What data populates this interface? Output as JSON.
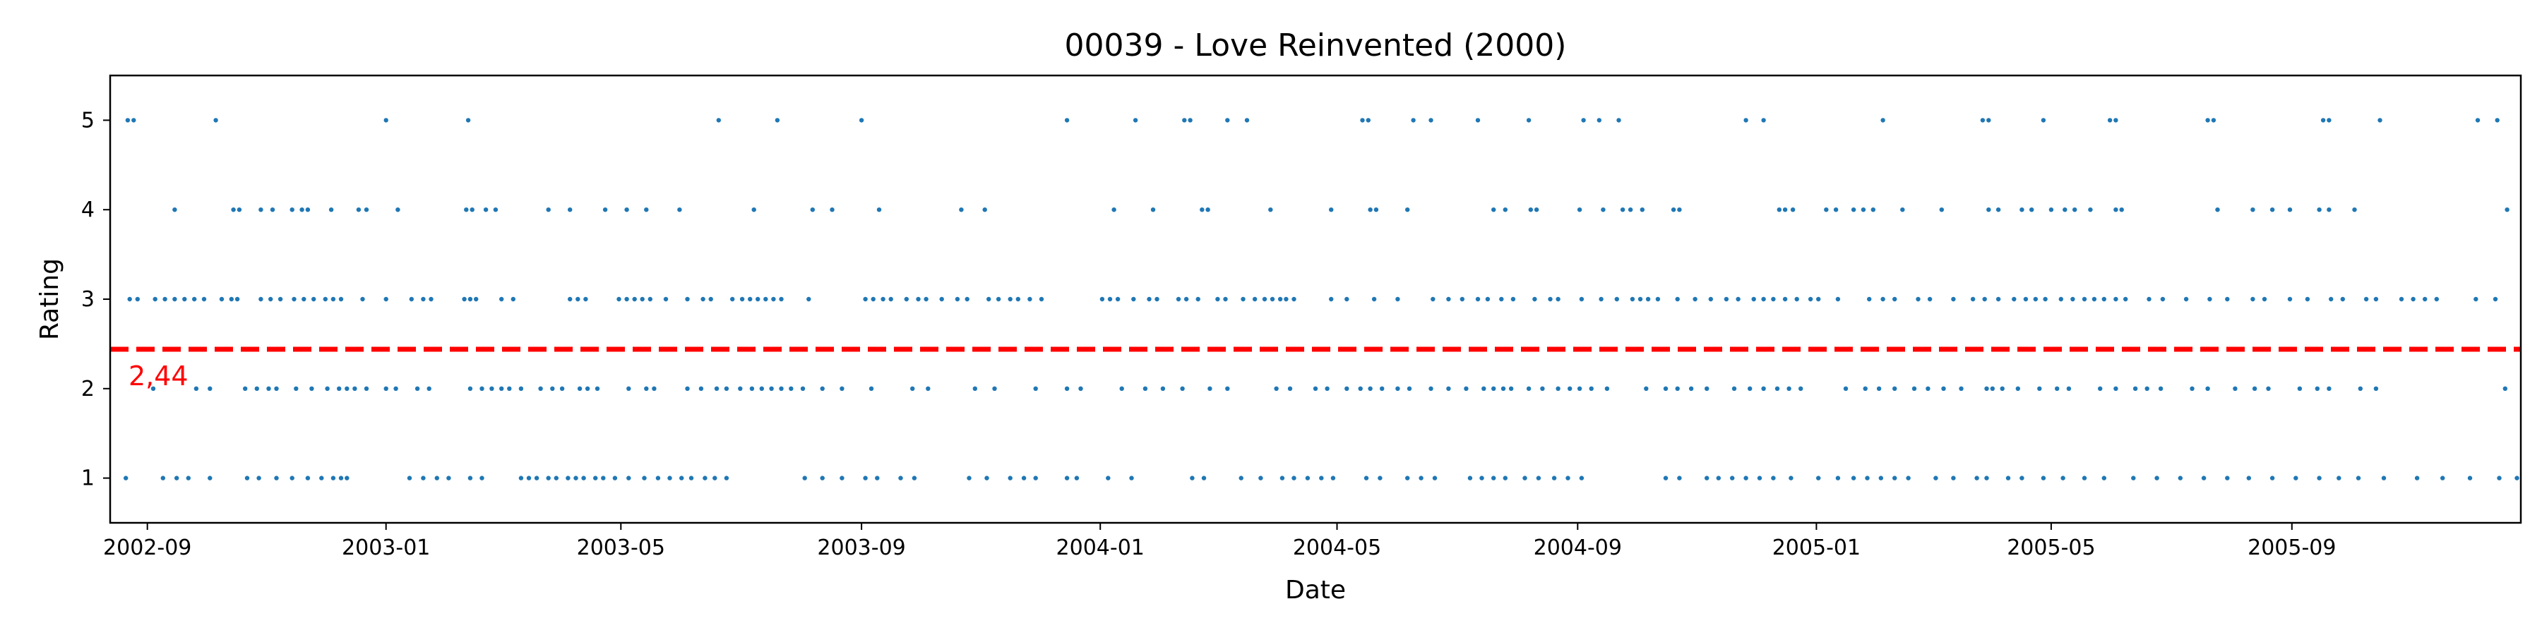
{
  "chart_data": {
    "type": "scatter",
    "title": "00039 - Love Reinvented (2000)",
    "xlabel": "Date",
    "ylabel": "Rating",
    "xlim": [
      "2002-08-13",
      "2005-12-27"
    ],
    "ylim": [
      0.5,
      5.5
    ],
    "x_ticks": [
      "2002-09",
      "2003-01",
      "2003-05",
      "2003-09",
      "2004-01",
      "2004-05",
      "2004-09",
      "2005-01",
      "2005-05",
      "2005-09"
    ],
    "y_ticks": [
      "1",
      "2",
      "3",
      "4",
      "5"
    ],
    "grid": false,
    "series": [
      {
        "color": "#1f77b4",
        "points_by_rating": {
          "5": [
            "2002-08-22",
            "2002-08-25",
            "2002-10-06",
            "2003-01-01",
            "2003-02-12",
            "2003-06-20",
            "2003-07-20",
            "2003-09-01",
            "2003-12-15",
            "2004-01-19",
            "2004-02-13",
            "2004-02-16",
            "2004-03-06",
            "2004-03-16",
            "2004-05-14",
            "2004-05-17",
            "2004-06-09",
            "2004-06-18",
            "2004-07-12",
            "2004-08-07",
            "2004-09-04",
            "2004-09-12",
            "2004-09-22",
            "2004-11-26",
            "2004-12-05",
            "2005-02-04",
            "2005-03-27",
            "2005-03-30",
            "2005-04-27",
            "2005-05-31",
            "2005-06-03",
            "2005-07-20",
            "2005-07-23",
            "2005-09-17",
            "2005-09-20",
            "2005-10-16",
            "2005-12-05",
            "2005-12-15"
          ],
          "4": [
            "2002-09-15",
            "2002-10-15",
            "2002-10-18",
            "2002-10-29",
            "2002-11-04",
            "2002-11-14",
            "2002-11-19",
            "2002-11-22",
            "2002-12-04",
            "2002-12-18",
            "2002-12-22",
            "2003-01-07",
            "2003-02-11",
            "2003-02-14",
            "2003-02-21",
            "2003-02-26",
            "2003-03-25",
            "2003-04-05",
            "2003-04-23",
            "2003-05-04",
            "2003-05-14",
            "2003-05-31",
            "2003-07-08",
            "2003-08-07",
            "2003-08-17",
            "2003-09-10",
            "2003-10-22",
            "2003-11-03",
            "2004-01-08",
            "2004-01-28",
            "2004-02-22",
            "2004-02-25",
            "2004-03-28",
            "2004-04-28",
            "2004-05-18",
            "2004-05-21",
            "2004-06-06",
            "2004-07-20",
            "2004-07-26",
            "2004-08-08",
            "2004-08-11",
            "2004-09-02",
            "2004-09-14",
            "2004-09-24",
            "2004-09-28",
            "2004-10-04",
            "2004-10-20",
            "2004-10-23",
            "2004-12-13",
            "2004-12-16",
            "2004-12-20",
            "2005-01-06",
            "2005-01-11",
            "2005-01-20",
            "2005-01-25",
            "2005-01-30",
            "2005-02-14",
            "2005-03-06",
            "2005-03-30",
            "2005-04-04",
            "2005-04-16",
            "2005-04-21",
            "2005-05-01",
            "2005-05-08",
            "2005-05-13",
            "2005-05-21",
            "2005-06-03",
            "2005-06-06",
            "2005-07-25",
            "2005-08-12",
            "2005-08-22",
            "2005-08-31",
            "2005-09-15",
            "2005-09-20",
            "2005-10-03",
            "2005-12-20"
          ],
          "3": [
            "2002-08-23",
            "2002-08-27",
            "2002-09-05",
            "2002-09-10",
            "2002-09-15",
            "2002-09-20",
            "2002-09-25",
            "2002-09-30",
            "2002-10-09",
            "2002-10-14",
            "2002-10-17",
            "2002-10-29",
            "2002-11-03",
            "2002-11-08",
            "2002-11-15",
            "2002-11-20",
            "2002-11-25",
            "2002-12-01",
            "2002-12-05",
            "2002-12-09",
            "2002-12-20",
            "2003-01-01",
            "2003-01-14",
            "2003-01-20",
            "2003-01-24",
            "2003-02-10",
            "2003-02-13",
            "2003-02-16",
            "2003-03-01",
            "2003-03-07",
            "2003-04-05",
            "2003-04-09",
            "2003-04-13",
            "2003-04-30",
            "2003-05-04",
            "2003-05-08",
            "2003-05-12",
            "2003-05-16",
            "2003-05-24",
            "2003-06-04",
            "2003-06-12",
            "2003-06-16",
            "2003-06-27",
            "2003-07-02",
            "2003-07-06",
            "2003-07-10",
            "2003-07-14",
            "2003-07-18",
            "2003-07-22",
            "2003-08-05",
            "2003-09-03",
            "2003-09-07",
            "2003-09-12",
            "2003-09-16",
            "2003-09-24",
            "2003-09-30",
            "2003-10-04",
            "2003-10-12",
            "2003-10-20",
            "2003-10-25",
            "2003-11-05",
            "2003-11-10",
            "2003-11-16",
            "2003-11-20",
            "2003-11-26",
            "2003-12-02",
            "2004-01-02",
            "2004-01-06",
            "2004-01-10",
            "2004-01-18",
            "2004-01-26",
            "2004-01-30",
            "2004-02-10",
            "2004-02-14",
            "2004-02-20",
            "2004-03-01",
            "2004-03-05",
            "2004-03-14",
            "2004-03-20",
            "2004-03-25",
            "2004-03-29",
            "2004-04-02",
            "2004-04-05",
            "2004-04-09",
            "2004-04-28",
            "2004-05-06",
            "2004-05-20",
            "2004-06-01",
            "2004-06-19",
            "2004-06-27",
            "2004-07-04",
            "2004-07-12",
            "2004-07-17",
            "2004-07-24",
            "2004-07-30",
            "2004-08-10",
            "2004-08-18",
            "2004-08-22",
            "2004-09-03",
            "2004-09-13",
            "2004-09-21",
            "2004-09-29",
            "2004-10-03",
            "2004-10-07",
            "2004-10-12",
            "2004-10-22",
            "2004-10-31",
            "2004-11-08",
            "2004-11-16",
            "2004-11-22",
            "2004-11-30",
            "2004-12-05",
            "2004-12-10",
            "2004-12-16",
            "2004-12-22",
            "2004-12-29",
            "2005-01-02",
            "2005-01-12",
            "2005-01-28",
            "2005-02-04",
            "2005-02-10",
            "2005-02-22",
            "2005-02-28",
            "2005-03-12",
            "2005-03-22",
            "2005-03-28",
            "2005-04-04",
            "2005-04-12",
            "2005-04-18",
            "2005-04-23",
            "2005-04-28",
            "2005-05-06",
            "2005-05-12",
            "2005-05-18",
            "2005-05-23",
            "2005-05-28",
            "2005-06-03",
            "2005-06-08",
            "2005-06-20",
            "2005-06-27",
            "2005-07-09",
            "2005-07-21",
            "2005-07-30",
            "2005-08-12",
            "2005-08-18",
            "2005-08-31",
            "2005-09-09",
            "2005-09-21",
            "2005-09-27",
            "2005-10-09",
            "2005-10-14",
            "2005-10-27",
            "2005-11-02",
            "2005-11-08",
            "2005-11-14",
            "2005-12-04",
            "2005-12-14"
          ],
          "2": [
            "2002-09-04",
            "2002-09-26",
            "2002-10-03",
            "2002-10-21",
            "2002-10-27",
            "2002-11-02",
            "2002-11-06",
            "2002-11-16",
            "2002-11-24",
            "2002-12-02",
            "2002-12-08",
            "2002-12-12",
            "2002-12-16",
            "2002-12-22",
            "2003-01-01",
            "2003-01-06",
            "2003-01-17",
            "2003-01-23",
            "2003-02-13",
            "2003-02-19",
            "2003-02-24",
            "2003-03-01",
            "2003-03-05",
            "2003-03-11",
            "2003-03-21",
            "2003-03-27",
            "2003-04-01",
            "2003-04-10",
            "2003-04-14",
            "2003-04-19",
            "2003-05-05",
            "2003-05-14",
            "2003-05-18",
            "2003-06-04",
            "2003-06-11",
            "2003-06-19",
            "2003-06-24",
            "2003-07-01",
            "2003-07-07",
            "2003-07-12",
            "2003-07-17",
            "2003-07-22",
            "2003-07-27",
            "2003-08-02",
            "2003-08-12",
            "2003-08-22",
            "2003-09-06",
            "2003-09-27",
            "2003-10-05",
            "2003-10-29",
            "2003-11-08",
            "2003-11-29",
            "2003-12-15",
            "2003-12-22",
            "2004-01-12",
            "2004-01-24",
            "2004-02-02",
            "2004-02-12",
            "2004-02-26",
            "2004-03-06",
            "2004-03-31",
            "2004-04-07",
            "2004-04-20",
            "2004-04-26",
            "2004-05-06",
            "2004-05-13",
            "2004-05-18",
            "2004-05-24",
            "2004-06-01",
            "2004-06-07",
            "2004-06-18",
            "2004-06-27",
            "2004-07-06",
            "2004-07-15",
            "2004-07-20",
            "2004-07-25",
            "2004-07-29",
            "2004-08-07",
            "2004-08-14",
            "2004-08-22",
            "2004-08-28",
            "2004-09-02",
            "2004-09-08",
            "2004-09-16",
            "2004-10-06",
            "2004-10-16",
            "2004-10-22",
            "2004-10-29",
            "2004-11-06",
            "2004-11-20",
            "2004-11-28",
            "2004-12-05",
            "2004-12-12",
            "2004-12-18",
            "2004-12-24",
            "2005-01-16",
            "2005-01-26",
            "2005-02-02",
            "2005-02-10",
            "2005-02-20",
            "2005-02-27",
            "2005-03-07",
            "2005-03-16",
            "2005-03-29",
            "2005-04-01",
            "2005-04-06",
            "2005-04-14",
            "2005-04-25",
            "2005-05-04",
            "2005-05-10",
            "2005-05-26",
            "2005-06-03",
            "2005-06-13",
            "2005-06-19",
            "2005-06-26",
            "2005-07-12",
            "2005-07-20",
            "2005-08-03",
            "2005-08-13",
            "2005-08-20",
            "2005-09-05",
            "2005-09-14",
            "2005-09-20",
            "2005-10-06",
            "2005-10-14",
            "2005-12-19"
          ],
          "1": [
            "2002-08-21",
            "2002-09-09",
            "2002-09-16",
            "2002-09-22",
            "2002-10-03",
            "2002-10-22",
            "2002-10-28",
            "2002-11-06",
            "2002-11-14",
            "2002-11-22",
            "2002-11-29",
            "2002-12-05",
            "2002-12-09",
            "2002-12-12",
            "2003-01-13",
            "2003-01-20",
            "2003-01-27",
            "2003-02-02",
            "2003-02-13",
            "2003-02-19",
            "2003-03-11",
            "2003-03-15",
            "2003-03-19",
            "2003-03-25",
            "2003-03-29",
            "2003-04-04",
            "2003-04-08",
            "2003-04-12",
            "2003-04-18",
            "2003-04-22",
            "2003-04-28",
            "2003-05-05",
            "2003-05-13",
            "2003-05-20",
            "2003-05-26",
            "2003-06-01",
            "2003-06-06",
            "2003-06-13",
            "2003-06-18",
            "2003-06-24",
            "2003-08-03",
            "2003-08-12",
            "2003-08-22",
            "2003-09-03",
            "2003-09-09",
            "2003-09-21",
            "2003-09-28",
            "2003-10-26",
            "2003-11-04",
            "2003-11-16",
            "2003-11-23",
            "2003-11-29",
            "2003-12-15",
            "2003-12-20",
            "2004-01-05",
            "2004-01-17",
            "2004-02-17",
            "2004-02-23",
            "2004-03-13",
            "2004-03-23",
            "2004-04-03",
            "2004-04-09",
            "2004-04-16",
            "2004-04-23",
            "2004-04-29",
            "2004-05-16",
            "2004-05-23",
            "2004-06-06",
            "2004-06-13",
            "2004-06-20",
            "2004-07-08",
            "2004-07-14",
            "2004-07-20",
            "2004-07-26",
            "2004-08-05",
            "2004-08-12",
            "2004-08-20",
            "2004-08-27",
            "2004-09-03",
            "2004-10-16",
            "2004-10-23",
            "2004-11-06",
            "2004-11-12",
            "2004-11-19",
            "2004-11-26",
            "2004-12-03",
            "2004-12-10",
            "2004-12-19",
            "2005-01-02",
            "2005-01-12",
            "2005-01-20",
            "2005-01-27",
            "2005-02-03",
            "2005-02-10",
            "2005-02-17",
            "2005-03-03",
            "2005-03-12",
            "2005-03-24",
            "2005-03-29",
            "2005-04-09",
            "2005-04-16",
            "2005-04-27",
            "2005-05-07",
            "2005-05-18",
            "2005-05-28",
            "2005-06-12",
            "2005-06-24",
            "2005-07-06",
            "2005-07-18",
            "2005-07-30",
            "2005-08-10",
            "2005-08-22",
            "2005-09-03",
            "2005-09-15",
            "2005-09-25",
            "2005-10-05",
            "2005-10-18",
            "2005-11-04",
            "2005-11-17",
            "2005-12-01",
            "2005-12-16",
            "2005-12-25"
          ]
        }
      }
    ],
    "reference_line": {
      "y": 2.44,
      "label": "2,44",
      "color": "#ff0000",
      "style": "dashed"
    }
  }
}
